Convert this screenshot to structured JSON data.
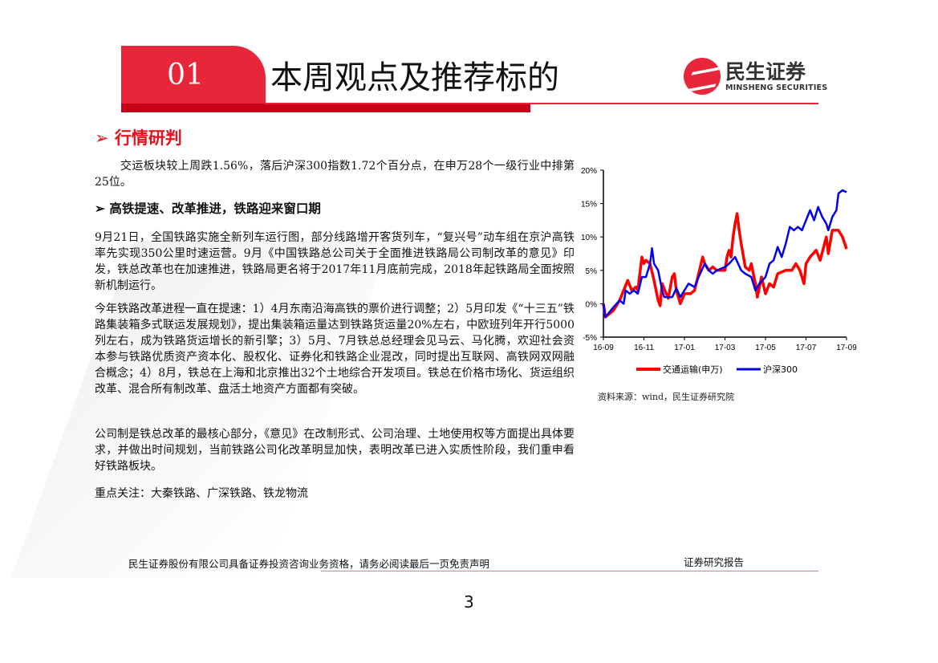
{
  "header": {
    "section_number": "01",
    "section_title": "本周观点及推荐标的",
    "logo_cn": "民生证券",
    "logo_en": "MINSHENG SECURITIES",
    "accent_color": "#e8263a"
  },
  "market": {
    "heading": "➢ 行情研判",
    "summary": "交运板块较上周跌1.56%，落后沪深300指数1.72个百分点，在申万28个一级行业中排第25位。"
  },
  "section2": {
    "heading": "➢  高铁提速、改革推进，铁路迎来窗口期",
    "paragraphs": [
      "9月21日，全国铁路实施全新列车运行图，部分线路增开客货列车，“复兴号”动车组在京沪高铁率先实现350公里时速运营。9月《中国铁路总公司关于全面推进铁路局公司制改革的意见》印发，铁总改革也在加速推进，铁路局更名将于2017年11月底前完成，2018年起铁路局全面按照新机制运行。",
      "今年铁路改革进程一直在提速：1）4月东南沿海高铁的票价进行调整；2）5月印发《“十三五”铁路集装箱多式联运发展规划》，提出集装箱运量达到铁路货运量20%左右，中欧班列年开行5000列左右，成为铁路货运增长的新引擎；3）5月、7月铁总总经理会见马云、马化腾，欢迎社会资本参与铁路优质资产资本化、股权化、证券化和铁路企业混改，同时提出互联网、高铁网双网融合概念；4）8月，铁总在上海和北京推出32个土地综合开发项目。铁总在价格市场化、货运组织改革、混合所有制改革、盘活土地资产方面都有突破。",
      "公司制是铁总改革的最核心部分，《意见》在改制形式、公司治理、土地使用权等方面提出具体要求，并做出时间规划，当前铁路公司化改革明显加快，表明改革已进入实质性阶段，我们重申看好铁路板块。",
      "重点关注：大秦铁路、广深铁路、铁龙物流"
    ]
  },
  "chart_data": {
    "type": "line",
    "title": "",
    "xlabel": "",
    "ylabel": "",
    "x_ticks": [
      "16-09",
      "16-11",
      "17-01",
      "17-03",
      "17-05",
      "17-07",
      "17-09"
    ],
    "y_ticks": [
      "20%",
      "15%",
      "10%",
      "5%",
      "0%",
      "-5%"
    ],
    "ylim": [
      -5,
      20
    ],
    "x_unit": "months since 2016-09",
    "xlim": [
      0,
      12
    ],
    "grid": false,
    "legend_position": "bottom",
    "series": [
      {
        "name": "交通运输(申万)",
        "color": "#ff0000",
        "points": [
          [
            0,
            0
          ],
          [
            0.1,
            -2
          ],
          [
            0.5,
            -1
          ],
          [
            0.8,
            0.5
          ],
          [
            1.0,
            2
          ],
          [
            1.2,
            3.5
          ],
          [
            1.4,
            2
          ],
          [
            1.6,
            2.5
          ],
          [
            1.7,
            2
          ],
          [
            1.8,
            4.5
          ],
          [
            1.9,
            7
          ],
          [
            2.0,
            6
          ],
          [
            2.1,
            6.5
          ],
          [
            2.3,
            6
          ],
          [
            2.5,
            3.5
          ],
          [
            2.7,
            0.5
          ],
          [
            2.8,
            -0.3
          ],
          [
            2.9,
            3
          ],
          [
            3.1,
            1.5
          ],
          [
            3.2,
            0.8
          ],
          [
            3.4,
            4
          ],
          [
            3.5,
            4.5
          ],
          [
            3.6,
            2
          ],
          [
            3.8,
            0
          ],
          [
            4.0,
            1.5
          ],
          [
            4.3,
            1.5
          ],
          [
            4.5,
            2
          ],
          [
            4.7,
            4.5
          ],
          [
            4.9,
            7
          ],
          [
            5.0,
            6
          ],
          [
            5.2,
            5
          ],
          [
            5.4,
            5.5
          ],
          [
            5.6,
            5
          ],
          [
            6.0,
            5
          ],
          [
            6.1,
            7
          ],
          [
            6.2,
            8
          ],
          [
            6.3,
            7
          ],
          [
            6.4,
            10
          ],
          [
            6.5,
            12
          ],
          [
            6.6,
            13.5
          ],
          [
            6.7,
            11
          ],
          [
            6.8,
            9
          ],
          [
            7.0,
            5.5
          ],
          [
            7.2,
            5
          ],
          [
            7.3,
            6
          ],
          [
            7.5,
            3
          ],
          [
            7.6,
            1
          ],
          [
            7.8,
            4
          ],
          [
            8.0,
            1.5
          ],
          [
            8.2,
            3
          ],
          [
            8.4,
            2.5
          ],
          [
            8.6,
            4.5
          ],
          [
            9.0,
            5
          ],
          [
            9.3,
            5
          ],
          [
            9.5,
            6
          ],
          [
            9.7,
            5
          ],
          [
            9.9,
            3
          ],
          [
            10.0,
            6
          ],
          [
            10.2,
            7
          ],
          [
            10.5,
            8
          ],
          [
            10.7,
            6.5
          ],
          [
            11.0,
            10
          ],
          [
            11.1,
            7.5
          ],
          [
            11.3,
            11
          ],
          [
            11.6,
            11
          ],
          [
            11.8,
            10
          ],
          [
            12.0,
            8.2
          ]
        ]
      },
      {
        "name": "沪深300",
        "color": "#0000ee",
        "points": [
          [
            0,
            0
          ],
          [
            0.1,
            -2
          ],
          [
            0.5,
            -0.5
          ],
          [
            0.8,
            0.5
          ],
          [
            1.0,
            0
          ],
          [
            1.1,
            2
          ],
          [
            1.3,
            1.5
          ],
          [
            1.5,
            2
          ],
          [
            1.7,
            1.5
          ],
          [
            1.9,
            4
          ],
          [
            2.1,
            4
          ],
          [
            2.3,
            6
          ],
          [
            2.4,
            8.3
          ],
          [
            2.5,
            6
          ],
          [
            2.7,
            5
          ],
          [
            2.9,
            2
          ],
          [
            3.0,
            1
          ],
          [
            3.2,
            1
          ],
          [
            3.4,
            1
          ],
          [
            3.6,
            2.3
          ],
          [
            3.8,
            1
          ],
          [
            4.0,
            2
          ],
          [
            4.2,
            3
          ],
          [
            4.5,
            2.5
          ],
          [
            4.7,
            4
          ],
          [
            5.0,
            6
          ],
          [
            5.2,
            5
          ],
          [
            5.4,
            4.5
          ],
          [
            5.6,
            5
          ],
          [
            6.0,
            5.5
          ],
          [
            6.2,
            6
          ],
          [
            6.5,
            7
          ],
          [
            6.8,
            5
          ],
          [
            7.0,
            4.5
          ],
          [
            7.3,
            4
          ],
          [
            7.5,
            2
          ],
          [
            7.7,
            3
          ],
          [
            8.0,
            4
          ],
          [
            8.2,
            6
          ],
          [
            8.4,
            6.5
          ],
          [
            8.6,
            8.5
          ],
          [
            8.8,
            7
          ],
          [
            9.0,
            9
          ],
          [
            9.2,
            11.5
          ],
          [
            9.4,
            11
          ],
          [
            9.6,
            11.5
          ],
          [
            9.8,
            11
          ],
          [
            10.0,
            12.5
          ],
          [
            10.2,
            14
          ],
          [
            10.4,
            12.5
          ],
          [
            10.6,
            14.5
          ],
          [
            10.8,
            13
          ],
          [
            11.0,
            12
          ],
          [
            11.1,
            11
          ],
          [
            11.3,
            13
          ],
          [
            11.5,
            14
          ],
          [
            11.6,
            16.5
          ],
          [
            11.8,
            17
          ],
          [
            12.0,
            16.7
          ]
        ]
      }
    ],
    "source": "资料来源：wind，民生证券研究院"
  },
  "footer": {
    "disclaimer": "民生证券股份有限公司具备证券投资咨询业务资格，请务必阅读最后一页免责声明",
    "report_type": "证券研究报告",
    "page_number": "3"
  }
}
